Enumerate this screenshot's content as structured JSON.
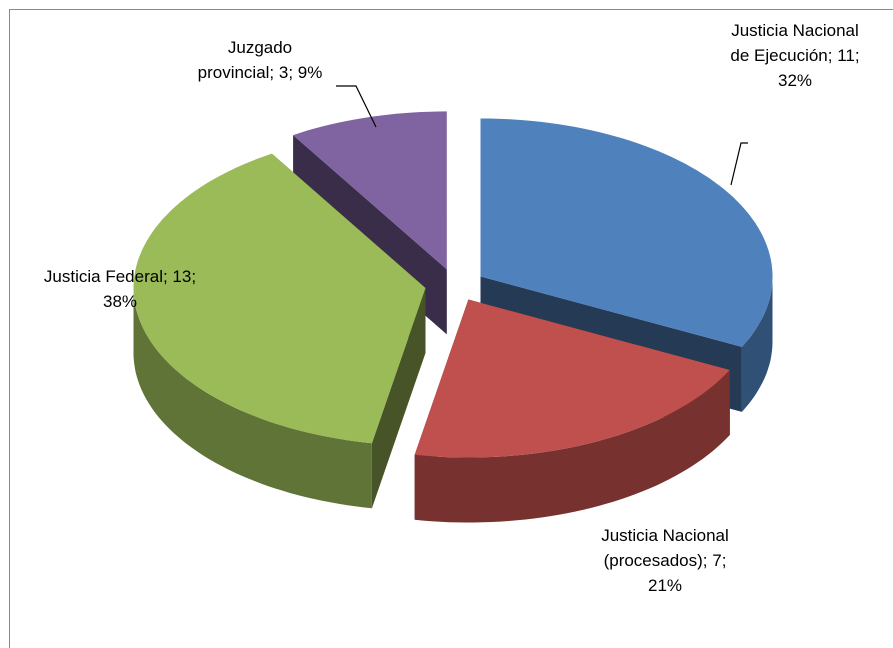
{
  "chart_data": {
    "type": "pie",
    "values": [
      11,
      7,
      13,
      3
    ],
    "value_labels": [
      "Justicia Nacional de Ejecución; 11; 32%",
      "Justicia Nacional (procesados); 7; 21%",
      "Justicia Federal; 13; 38%",
      "Juzgado provincial; 3; 9%"
    ],
    "colors": [
      "#4f81bd",
      "#c0504d",
      "#9bbb59",
      "#8064a2"
    ],
    "explode": true,
    "three_d": true
  }
}
